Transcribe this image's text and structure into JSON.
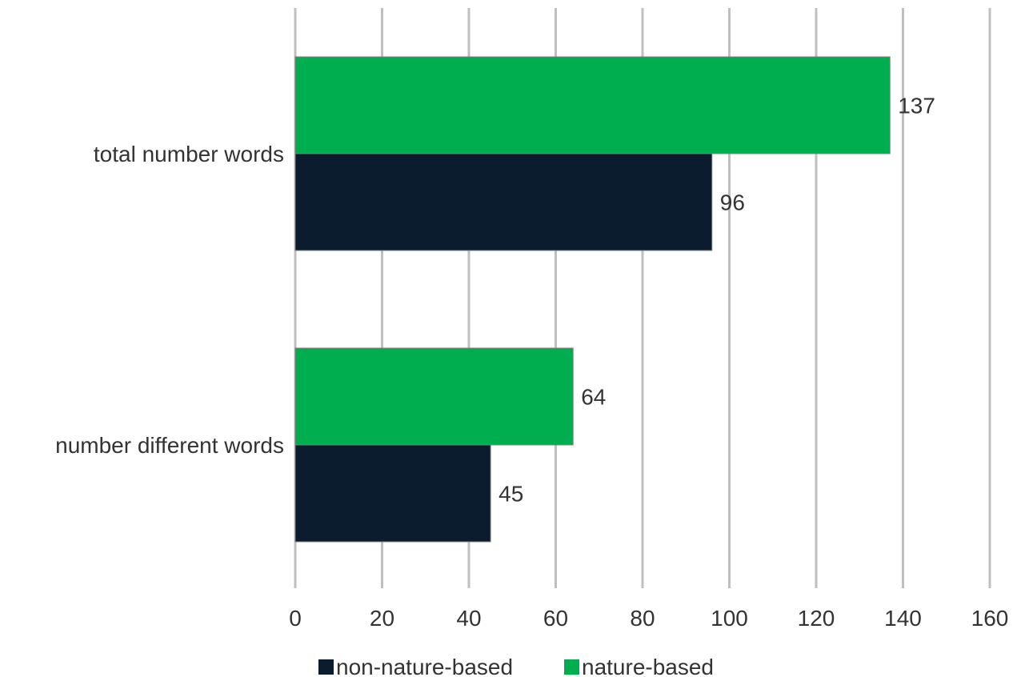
{
  "chart_data": {
    "type": "bar",
    "orientation": "horizontal",
    "categories": [
      "total number words",
      "number different words"
    ],
    "series": [
      {
        "name": "non-nature-based",
        "values": [
          96,
          45
        ],
        "color": "#0b1c2f"
      },
      {
        "name": "nature-based",
        "values": [
          137,
          64
        ],
        "color": "#00ad4f"
      }
    ],
    "xlim": [
      0,
      160
    ],
    "xticks": [
      0,
      20,
      40,
      60,
      80,
      100,
      120,
      140,
      160
    ],
    "grid": true,
    "legend_position": "bottom",
    "data_labels": true
  },
  "colors": {
    "grid": "#bfbfbf",
    "text": "#333333"
  }
}
